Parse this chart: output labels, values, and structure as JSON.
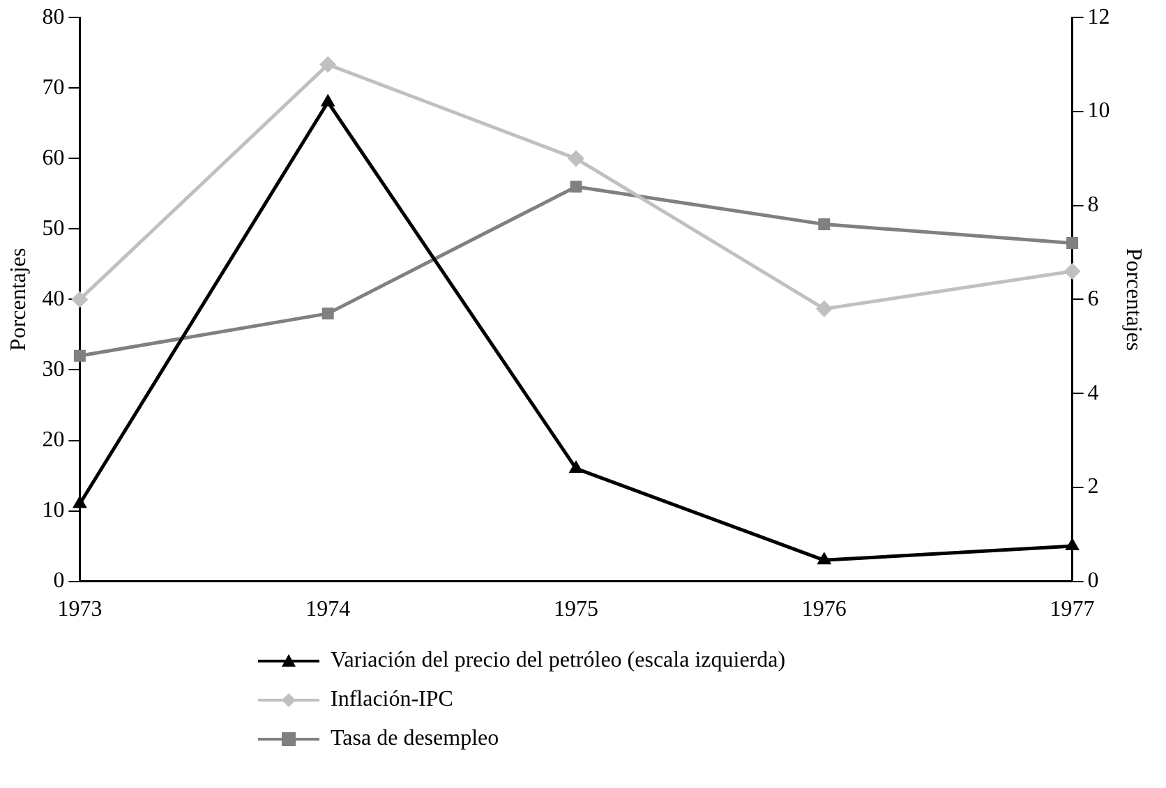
{
  "chart_data": {
    "type": "line",
    "categories": [
      "1973",
      "1974",
      "1975",
      "1976",
      "1977"
    ],
    "ylabel": "Porcentajes",
    "y2label": "Porcentajes",
    "ylim": [
      0,
      80
    ],
    "yticks": [
      0,
      10,
      20,
      30,
      40,
      50,
      60,
      70,
      80
    ],
    "y2lim": [
      0,
      12
    ],
    "y2ticks": [
      0,
      2,
      4,
      6,
      8,
      10,
      12
    ],
    "grid": false,
    "legend": "bottom",
    "line_style": "solid",
    "series": [
      {
        "name": "Variación del precio del petróleo (escala izquierda)",
        "color": "#000000",
        "marker": "triangle",
        "values": [
          11,
          68,
          16,
          3,
          5
        ]
      },
      {
        "name": "Inflación-IPC",
        "color": "#c0c0c0",
        "marker": "diamond",
        "axis": "y2",
        "values": [
          6.0,
          11.0,
          9.0,
          5.8,
          6.6
        ]
      },
      {
        "name": "Tasa de desempleo",
        "color": "#808080",
        "marker": "square",
        "axis": "y2",
        "values": [
          4.8,
          5.7,
          8.4,
          7.6,
          7.2
        ]
      }
    ]
  }
}
